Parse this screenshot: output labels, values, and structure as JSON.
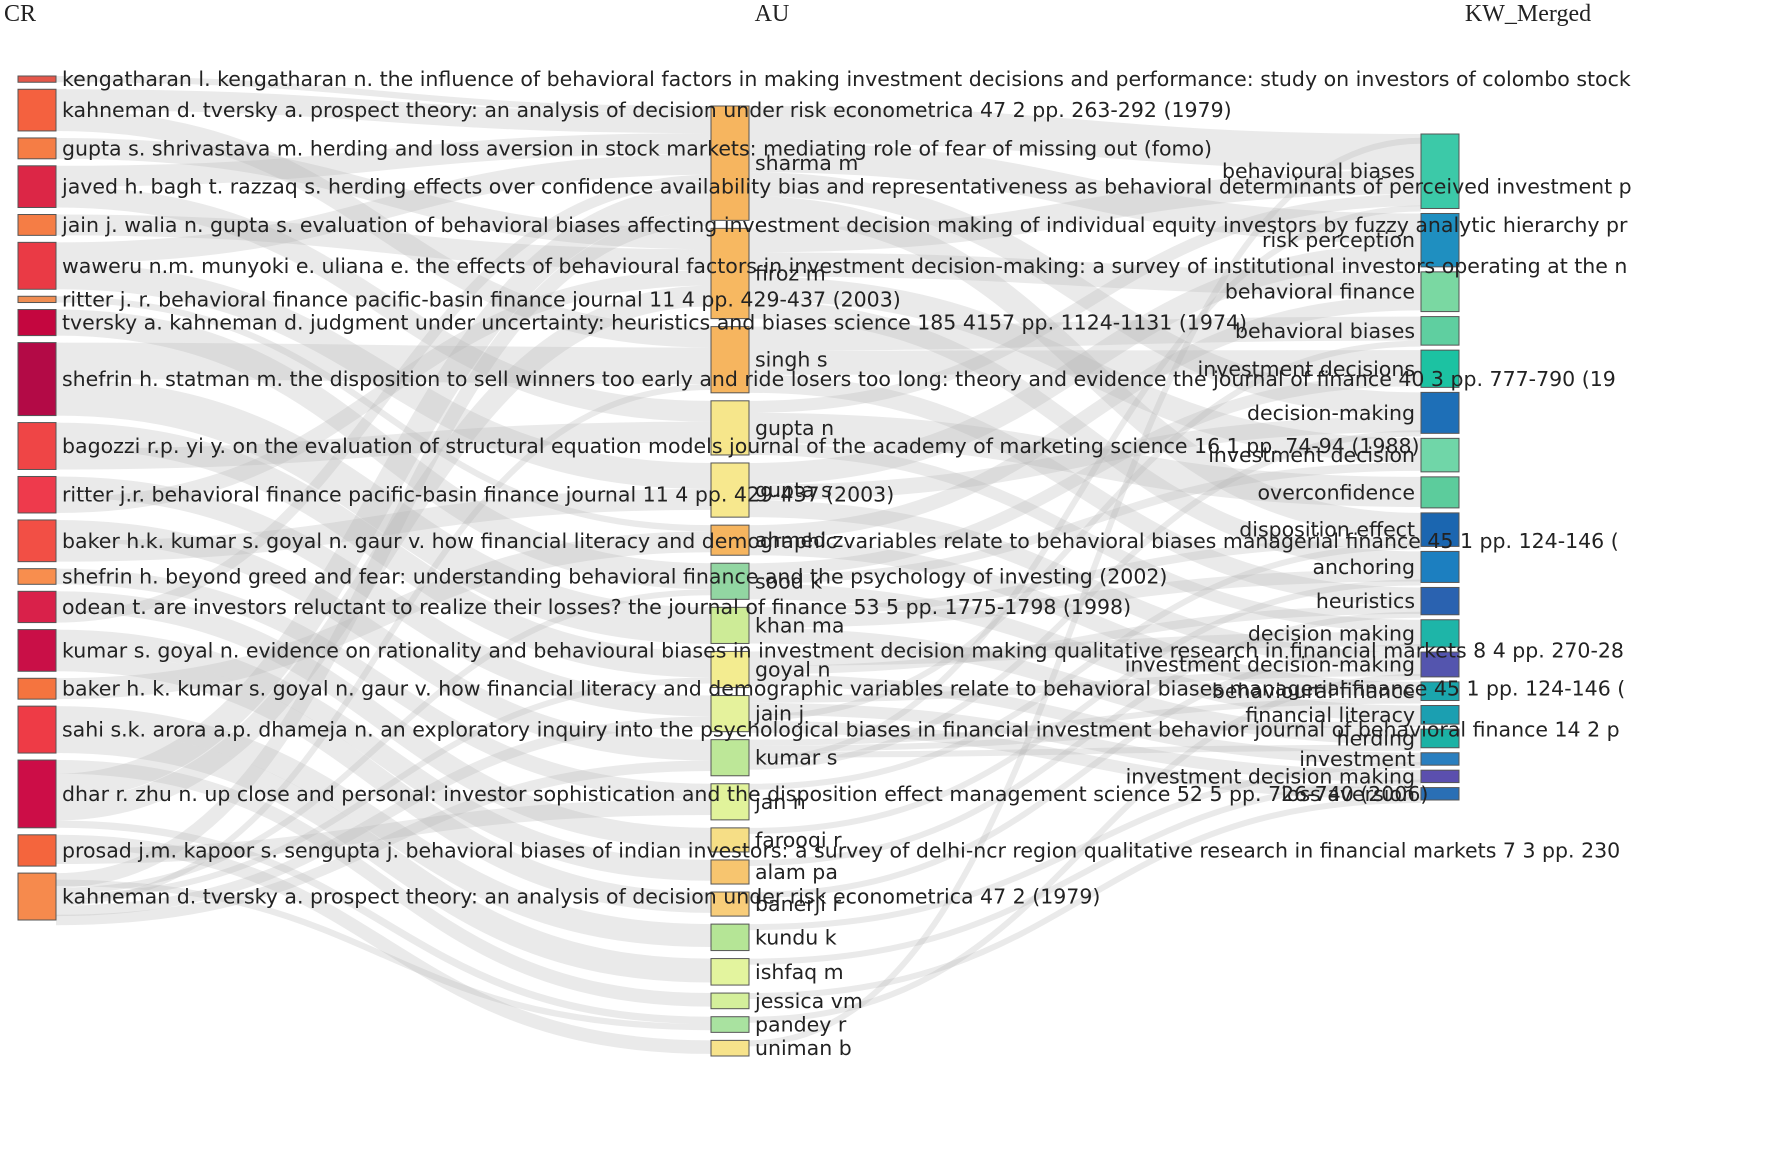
{
  "columns": {
    "left": "CR",
    "middle": "AU",
    "right": "KW_Merged"
  },
  "chart_data": {
    "type": "sankey",
    "cr_nodes": [
      {
        "label": "kengatharan l. kengatharan n. the influence of behavioral factors in making investment decisions and performance: study on investors of colombo stock",
        "weight": 0.6,
        "color": "#e4574a"
      },
      {
        "label": "kahneman d. tversky a. prospect theory: an analysis of decision under risk econometrica 47 2 pp. 263-292 (1979)",
        "weight": 4,
        "color": "#f4613f"
      },
      {
        "label": "gupta s. shrivastava m. herding and loss aversion in stock markets: mediating role of fear of missing out (fomo)",
        "weight": 2,
        "color": "#f57d45"
      },
      {
        "label": "javed h. bagh t. razzaq s. herding effects over confidence availability bias and representativeness as behavioral determinants of perceived investment p",
        "weight": 4,
        "color": "#dc2646"
      },
      {
        "label": "jain j. walia n. gupta s. evaluation of behavioral biases affecting investment decision making of individual equity investors by fuzzy analytic hierarchy pr",
        "weight": 2,
        "color": "#f57d45"
      },
      {
        "label": "waweru n.m. munyoki e. uliana e. the effects of behavioural factors in investment decision-making: a survey of institutional investors operating at the n",
        "weight": 4.5,
        "color": "#ea3a45"
      },
      {
        "label": "ritter j. r. behavioral finance pacific-basin finance journal 11 4 pp. 429-437 (2003)",
        "weight": 0.6,
        "color": "#f08d52"
      },
      {
        "label": "tversky a. kahneman d. judgment under uncertainty: heuristics and biases science 185 4157 pp. 1124-1131 (1974)",
        "weight": 2.5,
        "color": "#c4063f"
      },
      {
        "label": "shefrin h. statman m. the disposition to sell winners too early and ride losers too long: theory and evidence the journal of finance 40 3 pp. 777-790 (19",
        "weight": 7,
        "color": "#b30a46"
      },
      {
        "label": "bagozzi r.p. yi y. on the evaluation of structural equation models journal of the academy of marketing science 16 1 pp. 74-94 (1988)",
        "weight": 4.5,
        "color": "#ef4546"
      },
      {
        "label": "ritter j.r. behavioral finance pacific-basin finance journal 11 4 pp. 429-437 (2003)",
        "weight": 3.5,
        "color": "#ee3a4c"
      },
      {
        "label": "baker h.k. kumar s. goyal n. gaur v. how financial literacy and demographic variables relate to behavioral biases managerial finance 45 1 pp. 124-146 (",
        "weight": 4,
        "color": "#f24f45"
      },
      {
        "label": "shefrin h. beyond greed and fear: understanding behavioral finance and the psychology of investing (2002)",
        "weight": 1.5,
        "color": "#f88e4e"
      },
      {
        "label": "odean t. are investors reluctant to realize their losses? the journal of finance 53 5 pp. 1775-1798 (1998)",
        "weight": 3,
        "color": "#d9214a"
      },
      {
        "label": "kumar s. goyal n. evidence on rationality and behavioural biases in investment decision making qualitative research in financial markets 8 4 pp. 270-28",
        "weight": 4,
        "color": "#c90f47"
      },
      {
        "label": "baker h. k. kumar s. goyal n. gaur v. how financial literacy and demographic variables relate to behavioral biases managerial finance 45 1 pp. 124-146 (",
        "weight": 2,
        "color": "#f5743f"
      },
      {
        "label": "sahi s.k. arora a.p. dhameja n. an exploratory inquiry into the psychological biases in financial investment behavior journal of behavioral finance 14 2 p",
        "weight": 4.5,
        "color": "#ee3b46"
      },
      {
        "label": "dhar r. zhu n. up close and personal: investor sophistication and the disposition effect management science 52 5 pp. 726-740 (2006)",
        "weight": 6.5,
        "color": "#cc0d47"
      },
      {
        "label": "prosad j.m. kapoor s. sengupta j. behavioral biases of indian investors: a survey of delhi-ncr region qualitative research in financial markets 7 3 pp. 230",
        "weight": 3,
        "color": "#f4653d"
      },
      {
        "label": "kahneman d. tversky a. prospect theory: an analysis of decision under risk econometrica 47 2 (1979)",
        "weight": 4.5,
        "color": "#f68a4d"
      }
    ],
    "au_nodes": [
      {
        "label": "sharma m",
        "weight": 9.5,
        "color": "#f6b55f"
      },
      {
        "label": "firoz m",
        "weight": 7.5,
        "color": "#f7b861"
      },
      {
        "label": "singh s",
        "weight": 5.5,
        "color": "#f6b55f"
      },
      {
        "label": "gupta n",
        "weight": 4.5,
        "color": "#f6e68b"
      },
      {
        "label": "gupta s",
        "weight": 4.5,
        "color": "#f7e88e"
      },
      {
        "label": "ahmed z",
        "weight": 2.5,
        "color": "#f6b55f"
      },
      {
        "label": "sood k",
        "weight": 3,
        "color": "#92d6a2"
      },
      {
        "label": "khan ma",
        "weight": 3,
        "color": "#cdeb97"
      },
      {
        "label": "goyal n",
        "weight": 3,
        "color": "#f3ec90"
      },
      {
        "label": "jain j",
        "weight": 3,
        "color": "#e5f29c"
      },
      {
        "label": "kumar s",
        "weight": 3,
        "color": "#bde798"
      },
      {
        "label": "jan n",
        "weight": 3,
        "color": "#e1f39b"
      },
      {
        "label": "farooqi r",
        "weight": 2,
        "color": "#f6de86"
      },
      {
        "label": "alam pa",
        "weight": 2,
        "color": "#f7c56f"
      },
      {
        "label": "banerji r",
        "weight": 2,
        "color": "#f8cd7a"
      },
      {
        "label": "kundu k",
        "weight": 2.2,
        "color": "#b5e596"
      },
      {
        "label": "ishfaq m",
        "weight": 2.2,
        "color": "#e3f49e"
      },
      {
        "label": "jessica vm",
        "weight": 1.3,
        "color": "#d4ef9b"
      },
      {
        "label": "pandey r",
        "weight": 1.3,
        "color": "#a9e2a0"
      },
      {
        "label": "uniman b",
        "weight": 1.3,
        "color": "#f7e38b"
      }
    ],
    "kw_nodes": [
      {
        "label": "behavioural biases",
        "weight": 6,
        "color": "#3cc9a8"
      },
      {
        "label": "risk perception",
        "weight": 4.3,
        "color": "#1f8fc0"
      },
      {
        "label": "behavioral finance",
        "weight": 3.2,
        "color": "#7ad8a2"
      },
      {
        "label": "behavioral biases",
        "weight": 2.3,
        "color": "#5fcfa0"
      },
      {
        "label": "investment decisions",
        "weight": 3,
        "color": "#1cc2a2"
      },
      {
        "label": "decision-making",
        "weight": 3.3,
        "color": "#1e6fb7"
      },
      {
        "label": "investment decision",
        "weight": 2.7,
        "color": "#70d6a8"
      },
      {
        "label": "overconfidence",
        "weight": 2.5,
        "color": "#5ccc9c"
      },
      {
        "label": "disposition effect",
        "weight": 2.7,
        "color": "#1b66b0"
      },
      {
        "label": "anchoring",
        "weight": 2.5,
        "color": "#1c7fc0"
      },
      {
        "label": "heuristics",
        "weight": 2.2,
        "color": "#2a62b0"
      },
      {
        "label": "decision making",
        "weight": 2.2,
        "color": "#1eb5a8"
      },
      {
        "label": "investment decision-making",
        "weight": 2,
        "color": "#5455ae"
      },
      {
        "label": "behavioural finance",
        "weight": 1.5,
        "color": "#1ba6ad"
      },
      {
        "label": "financial literacy",
        "weight": 1.5,
        "color": "#1b9fb1"
      },
      {
        "label": "herding",
        "weight": 1.5,
        "color": "#1bb2a5"
      },
      {
        "label": "investment",
        "weight": 1,
        "color": "#2a7fbf"
      },
      {
        "label": "investment decision making",
        "weight": 1,
        "color": "#5b4fae"
      },
      {
        "label": "loss aversion",
        "weight": 1,
        "color": "#2a6fb5"
      }
    ],
    "cr_au_links": [
      [
        0,
        0,
        0.6
      ],
      [
        1,
        0,
        2
      ],
      [
        1,
        2,
        2
      ],
      [
        2,
        1,
        2
      ],
      [
        3,
        0,
        2
      ],
      [
        3,
        3,
        2
      ],
      [
        4,
        1,
        2
      ],
      [
        5,
        0,
        2
      ],
      [
        5,
        4,
        2.5
      ],
      [
        6,
        5,
        0.6
      ],
      [
        7,
        6,
        2.5
      ],
      [
        8,
        2,
        3.5
      ],
      [
        8,
        7,
        3.5
      ],
      [
        9,
        8,
        2.5
      ],
      [
        9,
        3,
        2
      ],
      [
        10,
        9,
        2
      ],
      [
        10,
        1,
        1.5
      ],
      [
        11,
        10,
        2
      ],
      [
        11,
        4,
        2
      ],
      [
        12,
        11,
        1.5
      ],
      [
        13,
        12,
        2
      ],
      [
        13,
        0,
        1
      ],
      [
        14,
        13,
        2
      ],
      [
        14,
        14,
        2
      ],
      [
        15,
        5,
        2
      ],
      [
        16,
        15,
        2.2
      ],
      [
        16,
        16,
        2.3
      ],
      [
        17,
        17,
        1.3
      ],
      [
        17,
        0,
        2.5
      ],
      [
        17,
        1,
        2
      ],
      [
        17,
        18,
        0.7
      ],
      [
        18,
        19,
        1.3
      ],
      [
        18,
        11,
        1.5
      ],
      [
        19,
        0,
        1.4
      ],
      [
        19,
        6,
        0.5
      ],
      [
        19,
        8,
        0.5
      ],
      [
        19,
        2,
        0
      ],
      [
        19,
        9,
        1
      ],
      [
        19,
        10,
        1
      ],
      [
        19,
        18,
        0.6
      ]
    ],
    "au_kw_links": [
      [
        0,
        0,
        3
      ],
      [
        0,
        1,
        2.5
      ],
      [
        0,
        5,
        2
      ],
      [
        0,
        8,
        2
      ],
      [
        1,
        0,
        2
      ],
      [
        1,
        2,
        2
      ],
      [
        1,
        6,
        2
      ],
      [
        1,
        9,
        1.5
      ],
      [
        2,
        3,
        2
      ],
      [
        2,
        4,
        2
      ],
      [
        2,
        10,
        1.5
      ],
      [
        3,
        0,
        1
      ],
      [
        3,
        7,
        2.5
      ],
      [
        3,
        11,
        1
      ],
      [
        4,
        1,
        1.8
      ],
      [
        4,
        5,
        1.3
      ],
      [
        4,
        12,
        1.4
      ],
      [
        5,
        2,
        1.2
      ],
      [
        5,
        13,
        1.3
      ],
      [
        6,
        4,
        1
      ],
      [
        6,
        6,
        0.7
      ],
      [
        6,
        14,
        1.3
      ],
      [
        7,
        8,
        0.7
      ],
      [
        7,
        9,
        1
      ],
      [
        7,
        15,
        1.3
      ],
      [
        8,
        11,
        1.2
      ],
      [
        8,
        10,
        0.7
      ],
      [
        8,
        16,
        1
      ],
      [
        9,
        12,
        0.6
      ],
      [
        9,
        17,
        1
      ],
      [
        9,
        3,
        0.3
      ],
      [
        9,
        18,
        1
      ],
      [
        10,
        13,
        0.2
      ],
      [
        10,
        14,
        0.2
      ],
      [
        10,
        15,
        0.2
      ],
      [
        10,
        0,
        0
      ],
      [
        10,
        5,
        0
      ],
      [
        11,
        8,
        0
      ],
      [
        12,
        9,
        0
      ],
      [
        13,
        10,
        0
      ],
      [
        14,
        11,
        0
      ],
      [
        15,
        16,
        0
      ],
      [
        16,
        17,
        0
      ],
      [
        17,
        18,
        0
      ],
      [
        18,
        12,
        0
      ],
      [
        19,
        0,
        0
      ]
    ]
  }
}
